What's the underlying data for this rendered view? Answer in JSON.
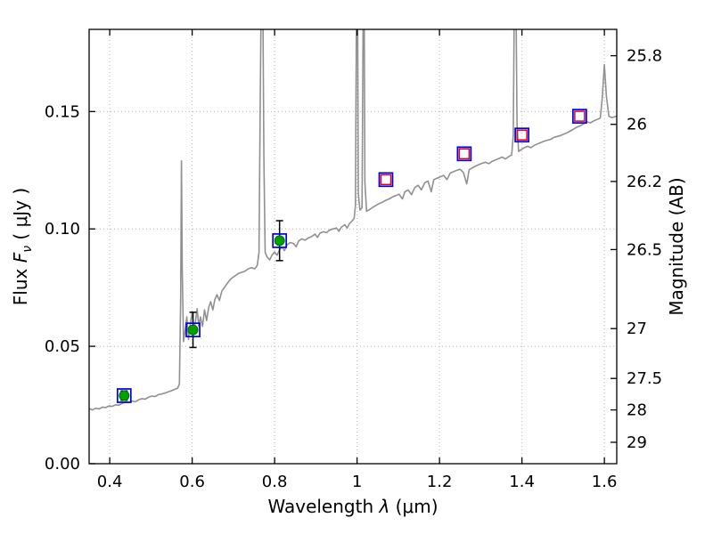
{
  "chart_data": {
    "type": "line",
    "title": "",
    "xlabel": {
      "prefix": "Wavelength  ",
      "symbol": "λ",
      "suffix": " (μm)"
    },
    "ylabel_left": {
      "prefix": "Flux  ",
      "symbol": "F",
      "subscript": "ν",
      "suffix": "  ( μJy )"
    },
    "ylabel_right": "Magnitude (AB)",
    "xlim": [
      0.35,
      1.63
    ],
    "ylim": [
      0.0,
      0.185
    ],
    "ab_zeropoint": 23.9,
    "grid": true,
    "x_ticks": [
      {
        "v": 0.4,
        "label": "0.4"
      },
      {
        "v": 0.6,
        "label": "0.6"
      },
      {
        "v": 0.8,
        "label": "0.8"
      },
      {
        "v": 1.0,
        "label": "1"
      },
      {
        "v": 1.2,
        "label": "1.2"
      },
      {
        "v": 1.4,
        "label": "1.4"
      },
      {
        "v": 1.6,
        "label": "1.6"
      }
    ],
    "y_ticks_left": [
      {
        "v": 0.0,
        "label": "0.00"
      },
      {
        "v": 0.05,
        "label": "0.05"
      },
      {
        "v": 0.1,
        "label": "0.10"
      },
      {
        "v": 0.15,
        "label": "0.15"
      }
    ],
    "y_ticks_right": [
      {
        "mag": 25.8,
        "label": "25.8"
      },
      {
        "mag": 26.0,
        "label": "26"
      },
      {
        "mag": 26.2,
        "label": "26.2"
      },
      {
        "mag": 26.5,
        "label": "26.5"
      },
      {
        "mag": 27.0,
        "label": "27"
      },
      {
        "mag": 27.5,
        "label": "27.5"
      },
      {
        "mag": 28.0,
        "label": "28"
      },
      {
        "mag": 29.0,
        "label": "29"
      }
    ],
    "colors": {
      "axis": "#000000",
      "grid": "#b5b5b5",
      "background": "#ffffff",
      "spectrum": "#909090",
      "blue": "#0000e6",
      "red": "#e00020",
      "green": "#00a000",
      "errorbar": "#000000"
    },
    "series": [
      {
        "name": "spectrum",
        "type": "line",
        "color": "#909090",
        "width": 1.6,
        "points": [
          [
            0.35,
            0.0235
          ],
          [
            0.358,
            0.0229
          ],
          [
            0.366,
            0.0236
          ],
          [
            0.374,
            0.0233
          ],
          [
            0.382,
            0.0241
          ],
          [
            0.39,
            0.0239
          ],
          [
            0.398,
            0.0246
          ],
          [
            0.406,
            0.0244
          ],
          [
            0.414,
            0.0251
          ],
          [
            0.422,
            0.0249
          ],
          [
            0.43,
            0.0257
          ],
          [
            0.438,
            0.0262
          ],
          [
            0.446,
            0.026
          ],
          [
            0.454,
            0.0267
          ],
          [
            0.462,
            0.0264
          ],
          [
            0.47,
            0.0272
          ],
          [
            0.478,
            0.0277
          ],
          [
            0.486,
            0.0275
          ],
          [
            0.494,
            0.0283
          ],
          [
            0.502,
            0.0288
          ],
          [
            0.51,
            0.0286
          ],
          [
            0.518,
            0.0294
          ],
          [
            0.526,
            0.0297
          ],
          [
            0.534,
            0.0301
          ],
          [
            0.542,
            0.0306
          ],
          [
            0.55,
            0.0311
          ],
          [
            0.558,
            0.0317
          ],
          [
            0.565,
            0.0322
          ],
          [
            0.569,
            0.034
          ],
          [
            0.572,
            0.07
          ],
          [
            0.574,
            0.129
          ],
          [
            0.576,
            0.082
          ],
          [
            0.579,
            0.052
          ],
          [
            0.583,
            0.057
          ],
          [
            0.587,
            0.0625
          ],
          [
            0.591,
            0.053
          ],
          [
            0.595,
            0.059
          ],
          [
            0.6,
            0.0645
          ],
          [
            0.604,
            0.0565
          ],
          [
            0.608,
            0.0605
          ],
          [
            0.612,
            0.066
          ],
          [
            0.616,
            0.0585
          ],
          [
            0.62,
            0.0625
          ],
          [
            0.625,
            0.0585
          ],
          [
            0.63,
            0.0655
          ],
          [
            0.635,
            0.061
          ],
          [
            0.64,
            0.0665
          ],
          [
            0.645,
            0.069
          ],
          [
            0.65,
            0.0655
          ],
          [
            0.655,
            0.07
          ],
          [
            0.66,
            0.072
          ],
          [
            0.666,
            0.0695
          ],
          [
            0.672,
            0.0735
          ],
          [
            0.68,
            0.0755
          ],
          [
            0.688,
            0.0775
          ],
          [
            0.696,
            0.079
          ],
          [
            0.704,
            0.08
          ],
          [
            0.712,
            0.081
          ],
          [
            0.72,
            0.0815
          ],
          [
            0.728,
            0.082
          ],
          [
            0.736,
            0.083
          ],
          [
            0.744,
            0.0835
          ],
          [
            0.752,
            0.083
          ],
          [
            0.758,
            0.0845
          ],
          [
            0.762,
            0.09
          ],
          [
            0.765,
            0.15
          ],
          [
            0.768,
            0.21
          ],
          [
            0.771,
            0.21
          ],
          [
            0.774,
            0.13
          ],
          [
            0.777,
            0.09
          ],
          [
            0.782,
            0.088
          ],
          [
            0.788,
            0.0868
          ],
          [
            0.794,
            0.089
          ],
          [
            0.8,
            0.0902
          ],
          [
            0.806,
            0.0888
          ],
          [
            0.812,
            0.0912
          ],
          [
            0.818,
            0.0922
          ],
          [
            0.824,
            0.0908
          ],
          [
            0.83,
            0.0932
          ],
          [
            0.838,
            0.0942
          ],
          [
            0.846,
            0.0938
          ],
          [
            0.852,
            0.0924
          ],
          [
            0.858,
            0.0948
          ],
          [
            0.866,
            0.0958
          ],
          [
            0.874,
            0.0952
          ],
          [
            0.882,
            0.0962
          ],
          [
            0.89,
            0.0968
          ],
          [
            0.898,
            0.0978
          ],
          [
            0.904,
            0.0964
          ],
          [
            0.91,
            0.0982
          ],
          [
            0.918,
            0.0988
          ],
          [
            0.926,
            0.0984
          ],
          [
            0.934,
            0.0996
          ],
          [
            0.942,
            0.1
          ],
          [
            0.95,
            0.1004
          ],
          [
            0.956,
            0.099
          ],
          [
            0.962,
            0.1008
          ],
          [
            0.97,
            0.1018
          ],
          [
            0.976,
            0.1004
          ],
          [
            0.982,
            0.1024
          ],
          [
            0.988,
            0.1034
          ],
          [
            0.993,
            0.1045
          ],
          [
            0.996,
            0.11
          ],
          [
            0.999,
            0.21
          ],
          [
            1.001,
            0.21
          ],
          [
            1.003,
            0.115
          ],
          [
            1.007,
            0.108
          ],
          [
            1.012,
            0.109
          ],
          [
            1.015,
            0.2
          ],
          [
            1.017,
            0.21
          ],
          [
            1.019,
            0.12
          ],
          [
            1.023,
            0.1075
          ],
          [
            1.03,
            0.1082
          ],
          [
            1.038,
            0.1092
          ],
          [
            1.046,
            0.11
          ],
          [
            1.054,
            0.1108
          ],
          [
            1.062,
            0.1114
          ],
          [
            1.07,
            0.1122
          ],
          [
            1.078,
            0.1128
          ],
          [
            1.086,
            0.1136
          ],
          [
            1.094,
            0.1142
          ],
          [
            1.102,
            0.1148
          ],
          [
            1.11,
            0.1128
          ],
          [
            1.116,
            0.1158
          ],
          [
            1.124,
            0.1166
          ],
          [
            1.132,
            0.1146
          ],
          [
            1.14,
            0.1176
          ],
          [
            1.148,
            0.1186
          ],
          [
            1.156,
            0.1166
          ],
          [
            1.164,
            0.1196
          ],
          [
            1.172,
            0.1204
          ],
          [
            1.18,
            0.1158
          ],
          [
            1.186,
            0.121
          ],
          [
            1.194,
            0.1216
          ],
          [
            1.202,
            0.1222
          ],
          [
            1.21,
            0.1228
          ],
          [
            1.218,
            0.121
          ],
          [
            1.226,
            0.1238
          ],
          [
            1.234,
            0.1244
          ],
          [
            1.242,
            0.125
          ],
          [
            1.25,
            0.1254
          ],
          [
            1.258,
            0.124
          ],
          [
            1.266,
            0.1192
          ],
          [
            1.272,
            0.1252
          ],
          [
            1.28,
            0.126
          ],
          [
            1.288,
            0.1268
          ],
          [
            1.296,
            0.1274
          ],
          [
            1.304,
            0.128
          ],
          [
            1.312,
            0.1284
          ],
          [
            1.32,
            0.1278
          ],
          [
            1.328,
            0.1288
          ],
          [
            1.336,
            0.1294
          ],
          [
            1.344,
            0.13
          ],
          [
            1.352,
            0.1306
          ],
          [
            1.36,
            0.1298
          ],
          [
            1.368,
            0.1308
          ],
          [
            1.375,
            0.1315
          ],
          [
            1.379,
            0.14
          ],
          [
            1.382,
            0.21
          ],
          [
            1.385,
            0.21
          ],
          [
            1.388,
            0.145
          ],
          [
            1.392,
            0.133
          ],
          [
            1.398,
            0.1338
          ],
          [
            1.406,
            0.1346
          ],
          [
            1.414,
            0.1352
          ],
          [
            1.422,
            0.1346
          ],
          [
            1.43,
            0.1356
          ],
          [
            1.438,
            0.1362
          ],
          [
            1.446,
            0.1368
          ],
          [
            1.454,
            0.1374
          ],
          [
            1.462,
            0.1378
          ],
          [
            1.47,
            0.1382
          ],
          [
            1.478,
            0.139
          ],
          [
            1.486,
            0.1394
          ],
          [
            1.494,
            0.1398
          ],
          [
            1.502,
            0.1404
          ],
          [
            1.51,
            0.141
          ],
          [
            1.518,
            0.1418
          ],
          [
            1.526,
            0.1426
          ],
          [
            1.534,
            0.1434
          ],
          [
            1.542,
            0.144
          ],
          [
            1.55,
            0.1448
          ],
          [
            1.558,
            0.1456
          ],
          [
            1.566,
            0.1452
          ],
          [
            1.574,
            0.146
          ],
          [
            1.582,
            0.1466
          ],
          [
            1.59,
            0.1472
          ],
          [
            1.595,
            0.156
          ],
          [
            1.6,
            0.17
          ],
          [
            1.605,
            0.1565
          ],
          [
            1.611,
            0.148
          ],
          [
            1.618,
            0.1474
          ],
          [
            1.625,
            0.1478
          ],
          [
            1.63,
            0.148
          ]
        ]
      },
      {
        "name": "blue-open-squares",
        "type": "scatter",
        "marker": "open-square",
        "color": "#0000e6",
        "size": 15,
        "stroke_width": 1.7,
        "points": [
          [
            0.435,
            0.029
          ],
          [
            0.602,
            0.057
          ],
          [
            0.812,
            0.095
          ],
          [
            1.07,
            0.121
          ],
          [
            1.26,
            0.132
          ],
          [
            1.4,
            0.14
          ],
          [
            1.54,
            0.148
          ]
        ]
      },
      {
        "name": "red-open-squares",
        "type": "scatter",
        "marker": "open-square",
        "color": "#e00020",
        "size": 11,
        "stroke_width": 1.5,
        "points": [
          [
            1.07,
            0.121
          ],
          [
            1.26,
            0.132
          ],
          [
            1.4,
            0.14
          ],
          [
            1.54,
            0.148
          ]
        ]
      },
      {
        "name": "green-filled-circles",
        "type": "scatter",
        "marker": "filled-circle",
        "color": "#00a000",
        "size": 11,
        "errorbars": true,
        "errorbar_color": "#000000",
        "points": [
          [
            0.435,
            0.029,
            0.002
          ],
          [
            0.602,
            0.057,
            0.0075
          ],
          [
            0.812,
            0.095,
            0.0085
          ]
        ]
      }
    ]
  }
}
